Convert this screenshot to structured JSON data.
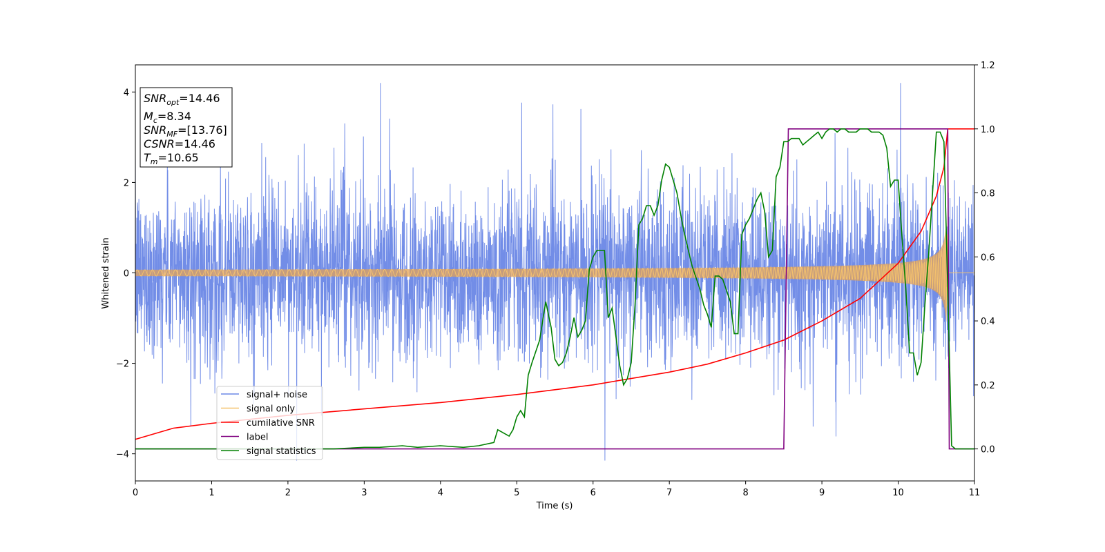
{
  "chart_data": {
    "type": "line",
    "xlabel": "Time (s)",
    "ylabel": "Whitened strain",
    "xlim": [
      0,
      11
    ],
    "ylim_left": [
      -4.6,
      4.6
    ],
    "ylim_right": [
      -0.1,
      1.2
    ],
    "x_ticks": [
      "0",
      "1",
      "2",
      "3",
      "4",
      "5",
      "6",
      "7",
      "8",
      "9",
      "10",
      "11"
    ],
    "y_ticks_left": [
      "4",
      "2",
      "0",
      "−2",
      "−4"
    ],
    "y_ticks_right": [
      "1.2",
      "1.0",
      "0.8",
      "0.6",
      "0.4",
      "0.2",
      "0.0"
    ],
    "annotation": {
      "rows": [
        {
          "base": "SNR",
          "sub": "opt",
          "rest": "=14.46"
        },
        {
          "base": "M",
          "sub": "c",
          "rest": "=8.34"
        },
        {
          "base": "SNR",
          "sub": "MF",
          "rest": "=[13.76]"
        },
        {
          "base": "CSNR",
          "sub": "",
          "rest": "=14.46"
        },
        {
          "base": "T",
          "sub": "m",
          "rest": "=10.65"
        }
      ]
    },
    "legend": {
      "placement": "lower-left",
      "entries": [
        {
          "label": "signal+ noise",
          "color": "#6a87e6"
        },
        {
          "label": "signal only",
          "color": "#f5c26b"
        },
        {
          "label": "cumilative SNR",
          "color": "#ff0000"
        },
        {
          "label": "label",
          "color": "#800080"
        },
        {
          "label": "signal statistics",
          "color": "#008000"
        }
      ]
    },
    "series": [
      {
        "name": "signal+ noise",
        "axis": "left",
        "description_values": {
          "x_range": [
            0,
            11
          ],
          "typical_amplitude": 1.6,
          "extremes": [
            -4.15,
            4.2
          ]
        }
      },
      {
        "name": "signal only",
        "axis": "left",
        "description_values": {
          "amplitude_start": 0.04,
          "amplitude_end": 1.1,
          "merger_time": 10.65
        }
      },
      {
        "name": "cumilative SNR",
        "axis": "right",
        "x": [
          0,
          0.5,
          1,
          2,
          3,
          4,
          5,
          6,
          7,
          7.5,
          8,
          8.5,
          9,
          9.5,
          10,
          10.3,
          10.5,
          10.6,
          10.65,
          11
        ],
        "y": [
          0.03,
          0.065,
          0.08,
          0.105,
          0.125,
          0.145,
          0.17,
          0.2,
          0.24,
          0.265,
          0.3,
          0.34,
          0.4,
          0.47,
          0.58,
          0.68,
          0.79,
          0.88,
          1.0,
          1.0
        ]
      },
      {
        "name": "label",
        "axis": "right",
        "x": [
          0,
          8.5,
          8.56,
          10.65,
          10.67,
          11
        ],
        "y": [
          0,
          0,
          1,
          1,
          0,
          0
        ]
      },
      {
        "name": "signal statistics",
        "axis": "right",
        "x": [
          0,
          1,
          2,
          2.6,
          3,
          3.2,
          3.5,
          3.7,
          4,
          4.3,
          4.5,
          4.7,
          4.75,
          4.9,
          4.95,
          5.0,
          5.05,
          5.1,
          5.15,
          5.2,
          5.3,
          5.38,
          5.45,
          5.5,
          5.55,
          5.6,
          5.65,
          5.7,
          5.75,
          5.8,
          5.85,
          5.9,
          5.95,
          6.0,
          6.05,
          6.1,
          6.15,
          6.2,
          6.25,
          6.3,
          6.35,
          6.4,
          6.45,
          6.5,
          6.55,
          6.6,
          6.65,
          6.7,
          6.75,
          6.8,
          6.85,
          6.9,
          6.95,
          7.0,
          7.05,
          7.1,
          7.15,
          7.2,
          7.3,
          7.4,
          7.45,
          7.5,
          7.55,
          7.6,
          7.65,
          7.7,
          7.8,
          7.85,
          7.9,
          7.95,
          8.0,
          8.05,
          8.1,
          8.15,
          8.2,
          8.25,
          8.3,
          8.35,
          8.4,
          8.45,
          8.5,
          8.55,
          8.6,
          8.65,
          8.7,
          8.75,
          8.8,
          8.85,
          8.9,
          8.95,
          9.0,
          9.05,
          9.1,
          9.15,
          9.2,
          9.25,
          9.3,
          9.35,
          9.4,
          9.45,
          9.5,
          9.55,
          9.6,
          9.65,
          9.7,
          9.75,
          9.8,
          9.85,
          9.9,
          9.95,
          10.0,
          10.05,
          10.1,
          10.15,
          10.2,
          10.25,
          10.3,
          10.35,
          10.4,
          10.45,
          10.5,
          10.55,
          10.6,
          10.65,
          10.7,
          10.75,
          10.8,
          11
        ],
        "y": [
          0,
          0,
          0,
          0,
          0.005,
          0.005,
          0.01,
          0.005,
          0.01,
          0.005,
          0.01,
          0.02,
          0.06,
          0.04,
          0.06,
          0.1,
          0.12,
          0.1,
          0.23,
          0.27,
          0.34,
          0.46,
          0.38,
          0.28,
          0.26,
          0.27,
          0.3,
          0.35,
          0.41,
          0.35,
          0.37,
          0.4,
          0.56,
          0.6,
          0.62,
          0.62,
          0.62,
          0.41,
          0.44,
          0.35,
          0.26,
          0.2,
          0.22,
          0.27,
          0.45,
          0.7,
          0.72,
          0.76,
          0.76,
          0.73,
          0.76,
          0.84,
          0.89,
          0.88,
          0.84,
          0.8,
          0.73,
          0.67,
          0.57,
          0.5,
          0.45,
          0.42,
          0.38,
          0.54,
          0.54,
          0.53,
          0.46,
          0.36,
          0.36,
          0.67,
          0.7,
          0.72,
          0.75,
          0.78,
          0.8,
          0.74,
          0.6,
          0.62,
          0.85,
          0.88,
          0.96,
          0.96,
          0.97,
          0.97,
          0.97,
          0.95,
          0.96,
          0.97,
          0.98,
          0.99,
          0.97,
          0.99,
          1.0,
          1.0,
          0.99,
          1.0,
          1.0,
          0.99,
          0.99,
          0.99,
          1.0,
          1.0,
          1.0,
          0.99,
          0.99,
          0.99,
          0.98,
          0.94,
          0.82,
          0.84,
          0.84,
          0.66,
          0.5,
          0.3,
          0.3,
          0.23,
          0.27,
          0.45,
          0.61,
          0.8,
          0.99,
          0.99,
          0.96,
          0.5,
          0.01,
          0.0,
          0.0,
          0.0
        ]
      }
    ]
  }
}
